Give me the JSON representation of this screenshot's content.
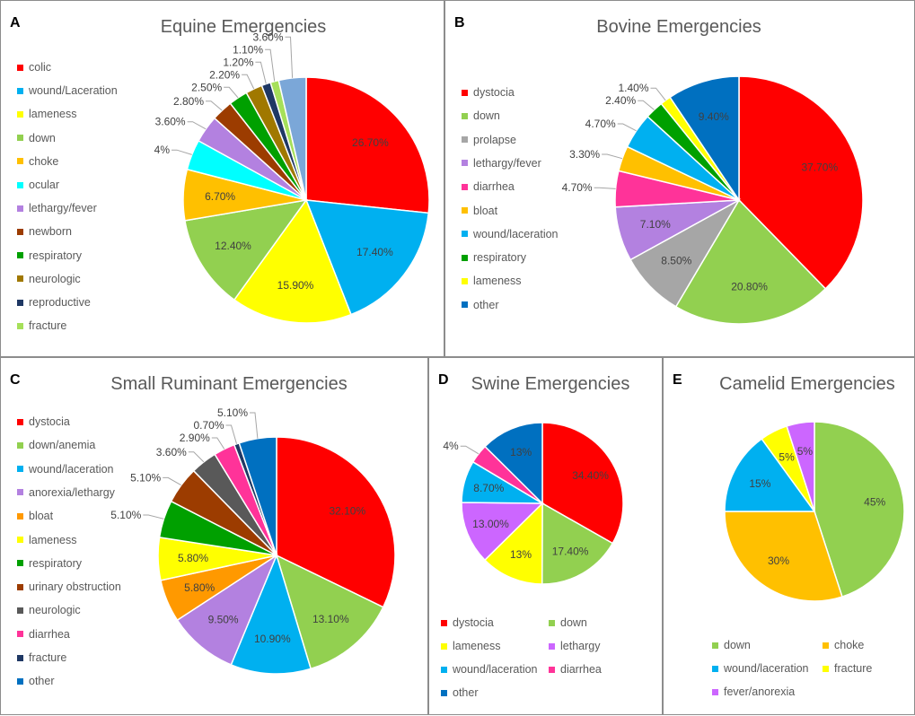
{
  "chart_data": [
    {
      "id": "A",
      "type": "pie",
      "panel_label": "A",
      "title": "Equine Emergencies",
      "slices": [
        {
          "label": "colic",
          "value": 26.7,
          "text": "26.70%",
          "color": "#ff0000"
        },
        {
          "label": "wound/Laceration",
          "value": 17.4,
          "text": "17.40%",
          "color": "#00b0f0"
        },
        {
          "label": "lameness",
          "value": 15.9,
          "text": "15.90%",
          "color": "#ffff00"
        },
        {
          "label": "down",
          "value": 12.4,
          "text": "12.40%",
          "color": "#92d050"
        },
        {
          "label": "choke",
          "value": 6.7,
          "text": "6.70%",
          "color": "#ffc000"
        },
        {
          "label": "ocular",
          "value": 4,
          "text": "4%",
          "color": "#00ffff"
        },
        {
          "label": "lethargy/fever",
          "value": 3.6,
          "text": "3.60%",
          "color": "#b381e0"
        },
        {
          "label": "newborn",
          "value": 2.8,
          "text": "2.80%",
          "color": "#9c3c00"
        },
        {
          "label": "respiratory",
          "value": 2.5,
          "text": "2.50%",
          "color": "#00a000"
        },
        {
          "label": "neurologic",
          "value": 2.2,
          "text": "2.20%",
          "color": "#a07800"
        },
        {
          "label": "reproductive",
          "value": 1.2,
          "text": "1.20%",
          "color": "#1f3864"
        },
        {
          "label": "fracture",
          "value": 1.1,
          "text": "1.10%",
          "color": "#a6e05a"
        },
        {
          "label": "",
          "value": 3.6,
          "text": "3.60%",
          "color": "#7ba7d8"
        }
      ]
    },
    {
      "id": "B",
      "type": "pie",
      "panel_label": "B",
      "title": "Bovine Emergencies",
      "slices": [
        {
          "label": "dystocia",
          "value": 37.7,
          "text": "37.70%",
          "color": "#ff0000"
        },
        {
          "label": "down",
          "value": 20.8,
          "text": "20.80%",
          "color": "#92d050"
        },
        {
          "label": "prolapse",
          "value": 8.5,
          "text": "8.50%",
          "color": "#a6a6a6"
        },
        {
          "label": "lethargy/fever",
          "value": 7.1,
          "text": "7.10%",
          "color": "#b381e0"
        },
        {
          "label": "diarrhea",
          "value": 4.7,
          "text": "4.70%",
          "color": "#ff3399"
        },
        {
          "label": "bloat",
          "value": 3.3,
          "text": "3.30%",
          "color": "#ffc000"
        },
        {
          "label": "wound/laceration",
          "value": 4.7,
          "text": "4.70%",
          "color": "#00b0f0"
        },
        {
          "label": "respiratory",
          "value": 2.4,
          "text": "2.40%",
          "color": "#00a000"
        },
        {
          "label": "lameness",
          "value": 1.4,
          "text": "1.40%",
          "color": "#ffff00"
        },
        {
          "label": "other",
          "value": 9.4,
          "text": "9.40%",
          "color": "#0070c0"
        }
      ]
    },
    {
      "id": "C",
      "type": "pie",
      "panel_label": "C",
      "title": "Small Ruminant Emergencies",
      "slices": [
        {
          "label": "dystocia",
          "value": 32.1,
          "text": "32.10%",
          "color": "#ff0000"
        },
        {
          "label": "down/anemia",
          "value": 13.1,
          "text": "13.10%",
          "color": "#92d050"
        },
        {
          "label": "wound/laceration",
          "value": 10.9,
          "text": "10.90%",
          "color": "#00b0f0"
        },
        {
          "label": "anorexia/lethargy",
          "value": 9.5,
          "text": "9.50%",
          "color": "#b381e0"
        },
        {
          "label": "bloat",
          "value": 5.8,
          "text": "5.80%",
          "color": "#ff9900"
        },
        {
          "label": "lameness",
          "value": 5.8,
          "text": "5.80%",
          "color": "#ffff00"
        },
        {
          "label": "respiratory",
          "value": 5.1,
          "text": "5.10%",
          "color": "#00a000"
        },
        {
          "label": "urinary obstruction",
          "value": 5.1,
          "text": "5.10%",
          "color": "#9c3c00"
        },
        {
          "label": "neurologic",
          "value": 3.6,
          "text": "3.60%",
          "color": "#595959"
        },
        {
          "label": "diarrhea",
          "value": 2.9,
          "text": "2.90%",
          "color": "#ff3399"
        },
        {
          "label": "fracture",
          "value": 0.7,
          "text": "0.70%",
          "color": "#1f3864"
        },
        {
          "label": "other",
          "value": 5.1,
          "text": "5.10%",
          "color": "#0070c0"
        }
      ]
    },
    {
      "id": "D",
      "type": "pie",
      "panel_label": "D",
      "title": "Swine Emergencies",
      "slices": [
        {
          "label": "dystocia",
          "value": 34.4,
          "text": "34.40%",
          "color": "#ff0000"
        },
        {
          "label": "down",
          "value": 17.4,
          "text": "17.40%",
          "color": "#92d050"
        },
        {
          "label": "lameness",
          "value": 13,
          "text": "13%",
          "color": "#ffff00"
        },
        {
          "label": "lethargy",
          "value": 13,
          "text": "13.00%",
          "color": "#cc66ff"
        },
        {
          "label": "wound/laceration",
          "value": 8.7,
          "text": "8.70%",
          "color": "#00b0f0"
        },
        {
          "label": "diarrhea",
          "value": 4,
          "text": "4%",
          "color": "#ff3399"
        },
        {
          "label": "other",
          "value": 13,
          "text": "13%",
          "color": "#0070c0"
        }
      ]
    },
    {
      "id": "E",
      "type": "pie",
      "panel_label": "E",
      "title": "Camelid Emergencies",
      "slices": [
        {
          "label": "down",
          "value": 45,
          "text": "45%",
          "color": "#92d050"
        },
        {
          "label": "choke",
          "value": 30,
          "text": "30%",
          "color": "#ffc000"
        },
        {
          "label": "wound/laceration",
          "value": 15,
          "text": "15%",
          "color": "#00b0f0"
        },
        {
          "label": "fracture",
          "value": 5,
          "text": "5%",
          "color": "#ffff00"
        },
        {
          "label": "fever/anorexia",
          "value": 5,
          "text": "5%",
          "color": "#cc66ff"
        }
      ]
    }
  ]
}
